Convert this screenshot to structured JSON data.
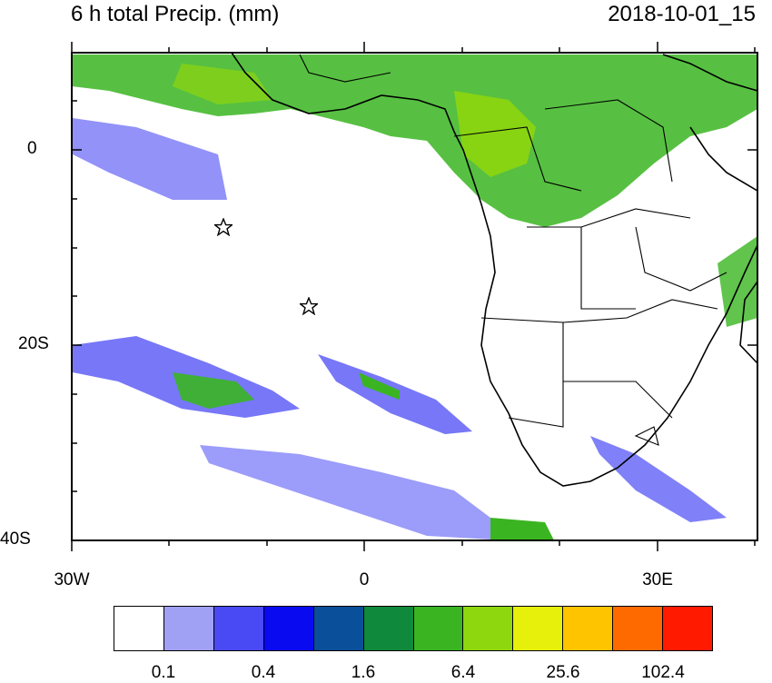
{
  "header": {
    "title": "6 h total Precip. (mm)",
    "valid_time": "2018-10-01_15"
  },
  "map": {
    "projection": "cylindrical equidistant",
    "lon_range": [
      -30,
      40
    ],
    "lat_range": [
      -40,
      10
    ],
    "ticks_x": [
      "30W",
      "0",
      "30E"
    ],
    "ticks_y": [
      "0",
      "20S",
      "40S"
    ],
    "star_markers": [
      {
        "label": "star-marker-1",
        "lon": -14.5,
        "lat": -8
      },
      {
        "label": "star-marker-2",
        "lon": -5.7,
        "lat": -16
      }
    ]
  },
  "colorbar": {
    "colors": [
      "#ffffff",
      "#a0a0f5",
      "#4a4af5",
      "#0a0af0",
      "#0a4f9a",
      "#0f8a3c",
      "#3ab521",
      "#8ed60e",
      "#e6f00a",
      "#ffc400",
      "#ff6a00",
      "#ff1a00"
    ],
    "labels": [
      "0.1",
      "0.4",
      "1.6",
      "6.4",
      "25.6",
      "102.4"
    ]
  }
}
